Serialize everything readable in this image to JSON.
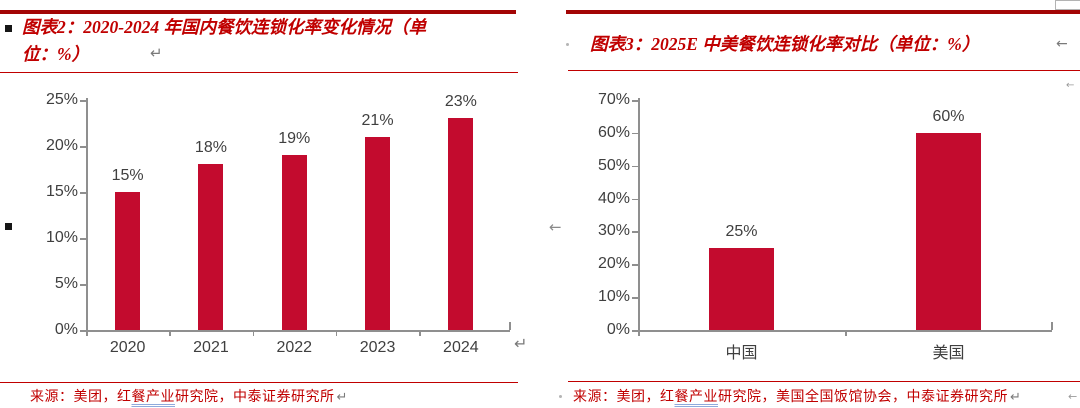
{
  "page": {
    "left_panel": {
      "title_line1": "图表2：2020-2024 年国内餐饮连锁化率变化情况（单",
      "title_line2": "位：%）",
      "source_prefix": "来源：美团，红",
      "source_underlined": "餐产业",
      "source_suffix": "研究院，中泰证券研究所"
    },
    "right_panel": {
      "title": "图表3：2025E 中美餐饮连锁化率对比（单位：%）",
      "source_prefix": "来源：美团，红",
      "source_underlined": "餐产业",
      "source_suffix": "研究院，美国全国饭馆协会，中泰证券研究所"
    },
    "marks": {
      "return_mark": "↵",
      "left_arrow_mark": "←"
    },
    "colors": {
      "bar": "#C30B2E",
      "title_red": "#C00000",
      "rule_dark_red": "#A30505",
      "axis_gray": "#8F8F8F",
      "label_dark": "#3F3F3F"
    }
  },
  "chart_data": [
    {
      "type": "bar",
      "title": "图表2：2020-2024 年国内餐饮连锁化率变化情况（单位：%）",
      "categories": [
        "2020",
        "2021",
        "2022",
        "2023",
        "2024"
      ],
      "values": [
        15,
        18,
        19,
        21,
        23
      ],
      "data_labels": [
        "15%",
        "18%",
        "19%",
        "21%",
        "23%"
      ],
      "unit": "%",
      "ylim": [
        0,
        25
      ],
      "ytick_step": 5,
      "ytick_values": [
        0,
        5,
        10,
        15,
        20,
        25
      ],
      "ytick_labels": [
        "0%",
        "5%",
        "10%",
        "15%",
        "20%",
        "25%"
      ],
      "grid": "off",
      "legend": "none",
      "bar_color": "#C30B2E",
      "source": "来源：美团，红餐产业研究院，中泰证券研究所"
    },
    {
      "type": "bar",
      "title": "图表3：2025E 中美餐饮连锁化率对比（单位：%）",
      "categories": [
        "中国",
        "美国"
      ],
      "values": [
        25,
        60
      ],
      "data_labels": [
        "25%",
        "60%"
      ],
      "unit": "%",
      "ylim": [
        0,
        70
      ],
      "ytick_step": 10,
      "ytick_values": [
        0,
        10,
        20,
        30,
        40,
        50,
        60,
        70
      ],
      "ytick_labels": [
        "0%",
        "10%",
        "20%",
        "30%",
        "40%",
        "50%",
        "60%",
        "70%"
      ],
      "grid": "off",
      "legend": "none",
      "bar_color": "#C30B2E",
      "source": "来源：美团，红餐产业研究院，美国全国饭馆协会，中泰证券研究所"
    }
  ]
}
